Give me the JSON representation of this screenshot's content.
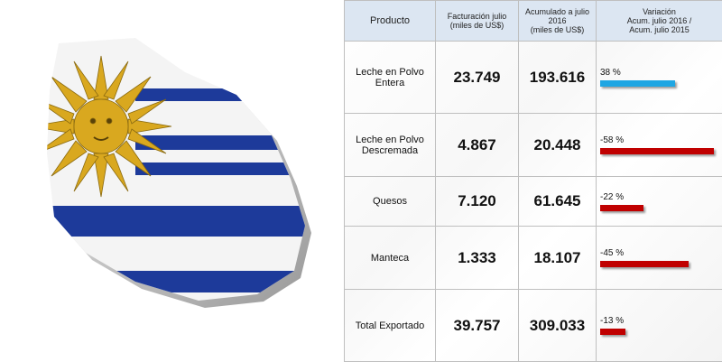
{
  "table": {
    "headers": [
      "Producto",
      "Facturación julio\n(miles de US$)",
      "Acumulado a julio\n2016\n(miles de US$)",
      "Variación\nAcum. julio 2016 /\nAcum. julio 2015"
    ],
    "rows": [
      {
        "product": "Leche en Polvo\nEntera",
        "billing": "23.749",
        "accumulated": "193.616",
        "variation": 38,
        "variation_label": "38 %"
      },
      {
        "product": "Leche en Polvo\nDescremada",
        "billing": "4.867",
        "accumulated": "20.448",
        "variation": -58,
        "variation_label": "-58 %"
      },
      {
        "product": "Quesos",
        "billing": "7.120",
        "accumulated": "61.645",
        "variation": -22,
        "variation_label": "-22 %"
      },
      {
        "product": "Manteca",
        "billing": "1.333",
        "accumulated": "18.107",
        "variation": -45,
        "variation_label": "-45 %"
      },
      {
        "product": "Total Exportado",
        "billing": "39.757",
        "accumulated": "309.033",
        "variation": -13,
        "variation_label": "-13 %"
      }
    ],
    "positive_color": "#1ea6e3",
    "negative_color": "#c00000"
  }
}
